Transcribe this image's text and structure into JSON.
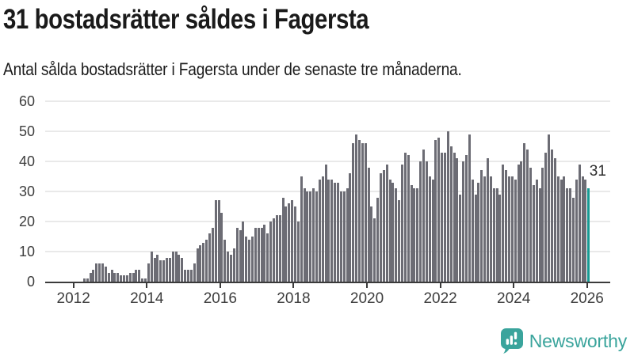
{
  "header": {
    "title": "31 bostadsrätter såldes i Fagersta",
    "subtitle": "Antal sålda bostadsrätter i Fagersta under de senaste tre månaderna."
  },
  "chart_data": {
    "type": "bar",
    "title": "31 bostadsrätter såldes i Fagersta",
    "xlabel": "",
    "ylabel": "",
    "ylim": [
      0,
      60
    ],
    "grid": true,
    "legend": "none",
    "frequency": "monthly",
    "y_ticks": [
      0,
      10,
      20,
      30,
      40,
      50,
      60
    ],
    "x_tick_years": [
      2012,
      2014,
      2016,
      2018,
      2020,
      2022,
      2024,
      2026
    ],
    "values": [
      1,
      1,
      3,
      4,
      6,
      6,
      6,
      5,
      3,
      4,
      3,
      3,
      2,
      2,
      2,
      3,
      3,
      4,
      4,
      1,
      1,
      6,
      10,
      8,
      9,
      7,
      7,
      8,
      8,
      10,
      10,
      9,
      8,
      4,
      4,
      4,
      6,
      11,
      12,
      13,
      14,
      16,
      18,
      27,
      27,
      23,
      14,
      10,
      9,
      11,
      18,
      17,
      20,
      15,
      14,
      15,
      18,
      18,
      18,
      19,
      16,
      20,
      21,
      22,
      22,
      28,
      25,
      26,
      27,
      25,
      20,
      35,
      31,
      30,
      30,
      31,
      30,
      34,
      35,
      39,
      34,
      34,
      33,
      33,
      30,
      30,
      31,
      36,
      46,
      49,
      47,
      46,
      46,
      38,
      25,
      21,
      28,
      36,
      37,
      39,
      34,
      33,
      31,
      27,
      39,
      43,
      42,
      32,
      31,
      31,
      40,
      44,
      40,
      35,
      34,
      47,
      48,
      43,
      43,
      50,
      45,
      43,
      41,
      29,
      40,
      42,
      49,
      34,
      29,
      33,
      37,
      35,
      41,
      35,
      31,
      31,
      29,
      39,
      37,
      35,
      35,
      34,
      39,
      40,
      46,
      44,
      38,
      32,
      34,
      31,
      38,
      43,
      49,
      44,
      41,
      35,
      34,
      35,
      31,
      31,
      28,
      34,
      39,
      35,
      34,
      31
    ],
    "highlight": {
      "index": 165,
      "value": 31,
      "label": "31"
    },
    "colors": {
      "bar": "#6c6c74",
      "highlight": "#189a93",
      "grid": "#e9e9e9",
      "axis": "#3b3b3b",
      "tick_label": "#3d3d3d"
    }
  },
  "footer": {
    "brand": "Newsworthy",
    "brand_color": "#3aa49c",
    "icon": "newsworthy-chart-bubble-icon"
  }
}
